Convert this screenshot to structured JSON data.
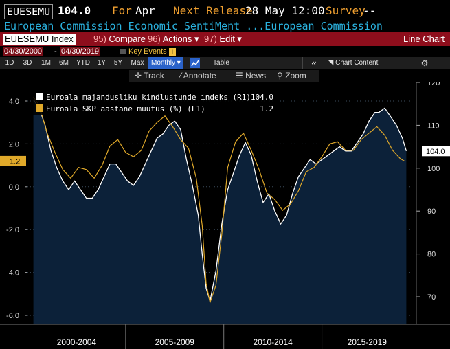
{
  "header": {
    "ticker": "EUESEMU",
    "value": "104.0",
    "for_label": "For",
    "for_period": "Apr",
    "next_release_label": "Next Release",
    "next_release_date": "28 May 12:00",
    "survey_label": "Survey",
    "survey_value": "--",
    "description": "European Commission Economic SentiMent ...European Commission"
  },
  "menubar": {
    "index_label": "EUESEMU Index",
    "compare_num": "95)",
    "compare_label": "Compare",
    "actions_num": "96)",
    "actions_label": "Actions ▾",
    "edit_num": "97)",
    "edit_label": "Edit ▾",
    "chart_type": "Line Chart"
  },
  "dates": {
    "start": "04/30/2000",
    "dash": "-",
    "end": "04/30/2019",
    "key_events": "Key Events",
    "info": "i"
  },
  "toolbar": {
    "periods": [
      "1D",
      "3D",
      "1M",
      "6M",
      "YTD",
      "1Y",
      "5Y",
      "Max"
    ],
    "frequency": "Monthly ▾",
    "table_label": "Table",
    "collapse": "«",
    "chart_content": "Chart Content",
    "gear": "⚙"
  },
  "tools": {
    "track": "Track",
    "annotate": "Annotate",
    "news": "News",
    "zoom": "Zoom"
  },
  "legend": {
    "s1_label": "Euroala majandusliku kindlustunde indeks  (R1)",
    "s1_value": "104.0",
    "s2_label": "Euroala SKP aastane muutus (%) (L1)",
    "s2_value": "1.2"
  },
  "colors": {
    "accent_orange": "#f0a030",
    "bar_red": "#8e0e1c",
    "cyan": "#2bb3e0",
    "area_fill": "#0c2139",
    "gdp_line": "#e0a92a",
    "sentiment_line": "#ffffff"
  },
  "chart_data": {
    "type": "line",
    "x_categories": [
      "2000-2004",
      "2005-2009",
      "2010-2014",
      "2015-2019"
    ],
    "left_axis": {
      "ticks": [
        "4.0",
        "2.0",
        "0.0",
        "-2.0",
        "-4.0",
        "-6.0"
      ],
      "range": [
        -6.5,
        4.7
      ],
      "last_label": "1.2"
    },
    "right_axis": {
      "ticks": [
        "120",
        "110",
        "100",
        "90",
        "80",
        "70"
      ],
      "range": [
        63,
        120
      ],
      "last_label": "104.0"
    },
    "series": [
      {
        "name": "Euroala majandusliku kindlustunde indeks  (R1)",
        "axis": "right",
        "style": "area",
        "x": [
          2000.3,
          2000.6,
          2000.9,
          2001.2,
          2001.5,
          2001.8,
          2002.1,
          2002.4,
          2002.7,
          2003.0,
          2003.3,
          2003.6,
          2003.9,
          2004.2,
          2004.5,
          2004.8,
          2005.1,
          2005.4,
          2005.7,
          2006.0,
          2006.3,
          2006.6,
          2006.9,
          2007.2,
          2007.5,
          2007.8,
          2008.1,
          2008.4,
          2008.7,
          2008.9,
          2009.1,
          2009.3,
          2009.6,
          2009.9,
          2010.2,
          2010.5,
          2010.8,
          2011.1,
          2011.4,
          2011.7,
          2012.0,
          2012.3,
          2012.6,
          2012.9,
          2013.2,
          2013.5,
          2013.8,
          2014.1,
          2014.4,
          2014.7,
          2015.0,
          2015.3,
          2015.6,
          2015.9,
          2016.2,
          2016.5,
          2016.8,
          2017.1,
          2017.4,
          2017.7,
          2017.9,
          2018.2,
          2018.5,
          2018.8,
          2019.1,
          2019.3
        ],
        "values": [
          116,
          114,
          110,
          104,
          100,
          97,
          95,
          97,
          95,
          93,
          93,
          95,
          98,
          101,
          101,
          99,
          97,
          96,
          98,
          101,
          104,
          107,
          108,
          110,
          111,
          109,
          102,
          96,
          89,
          80,
          72,
          69,
          76,
          87,
          95,
          99,
          103,
          106,
          103,
          97,
          92,
          94,
          90,
          87,
          89,
          94,
          98,
          100,
          102,
          101,
          102,
          103,
          104,
          105,
          104,
          104,
          106,
          108,
          111,
          113,
          113,
          114,
          112,
          110,
          107,
          104
        ]
      },
      {
        "name": "Euroala SKP aastane muutus (%) (L1)",
        "axis": "left",
        "style": "line",
        "x": [
          2000.3,
          2000.6,
          2001.0,
          2001.4,
          2001.8,
          2002.2,
          2002.6,
          2003.0,
          2003.4,
          2003.8,
          2004.2,
          2004.6,
          2005.0,
          2005.4,
          2005.8,
          2006.2,
          2006.6,
          2007.0,
          2007.4,
          2007.8,
          2008.2,
          2008.6,
          2008.9,
          2009.1,
          2009.3,
          2009.6,
          2009.9,
          2010.2,
          2010.6,
          2011.0,
          2011.4,
          2011.8,
          2012.2,
          2012.6,
          2013.0,
          2013.4,
          2013.8,
          2014.2,
          2014.6,
          2015.0,
          2015.4,
          2015.8,
          2016.2,
          2016.6,
          2017.0,
          2017.4,
          2017.8,
          2018.2,
          2018.6,
          2019.0,
          2019.2
        ],
        "values": [
          4.2,
          3.8,
          2.5,
          1.6,
          0.8,
          0.4,
          0.9,
          0.8,
          0.4,
          1.0,
          1.9,
          2.2,
          1.6,
          1.4,
          1.7,
          2.6,
          3.0,
          3.3,
          2.8,
          2.2,
          1.8,
          0.4,
          -1.8,
          -4.5,
          -5.4,
          -4.6,
          -2.2,
          0.9,
          2.1,
          2.5,
          1.7,
          0.8,
          -0.3,
          -0.6,
          -1.1,
          -0.8,
          -0.2,
          0.7,
          0.9,
          1.4,
          2.0,
          2.1,
          1.7,
          1.7,
          2.2,
          2.5,
          2.8,
          2.4,
          1.7,
          1.3,
          1.2
        ]
      }
    ]
  }
}
